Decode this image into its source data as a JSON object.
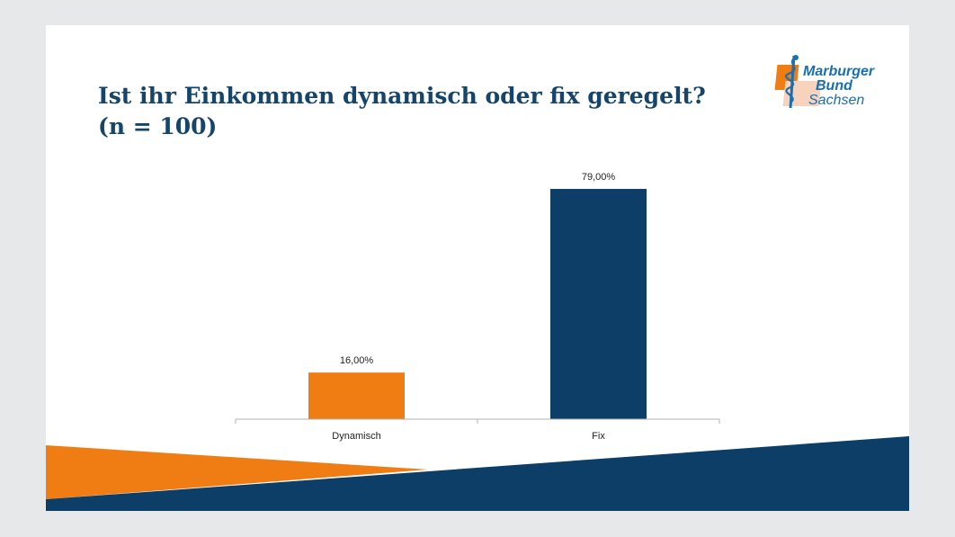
{
  "title_lines": [
    "Ist ihr Einkommen dynamisch oder fix geregelt?",
    "(n = 100)"
  ],
  "logo": {
    "line1": "Marburger",
    "line2": "Bund",
    "line3": "Sachsen"
  },
  "colors": {
    "orange": "#f07d14",
    "navy": "#0c3e68",
    "title": "#16456b"
  },
  "chart_data": {
    "type": "bar",
    "categories": [
      "Dynamisch",
      "Fix"
    ],
    "values": [
      16,
      79
    ],
    "value_labels": [
      "16,00%",
      "79,00%"
    ],
    "bar_colors": [
      "#f07d14",
      "#0c3e68"
    ],
    "ylim": [
      0,
      100
    ],
    "grid": false,
    "legend": "none",
    "title": "",
    "xlabel": "",
    "ylabel": ""
  }
}
